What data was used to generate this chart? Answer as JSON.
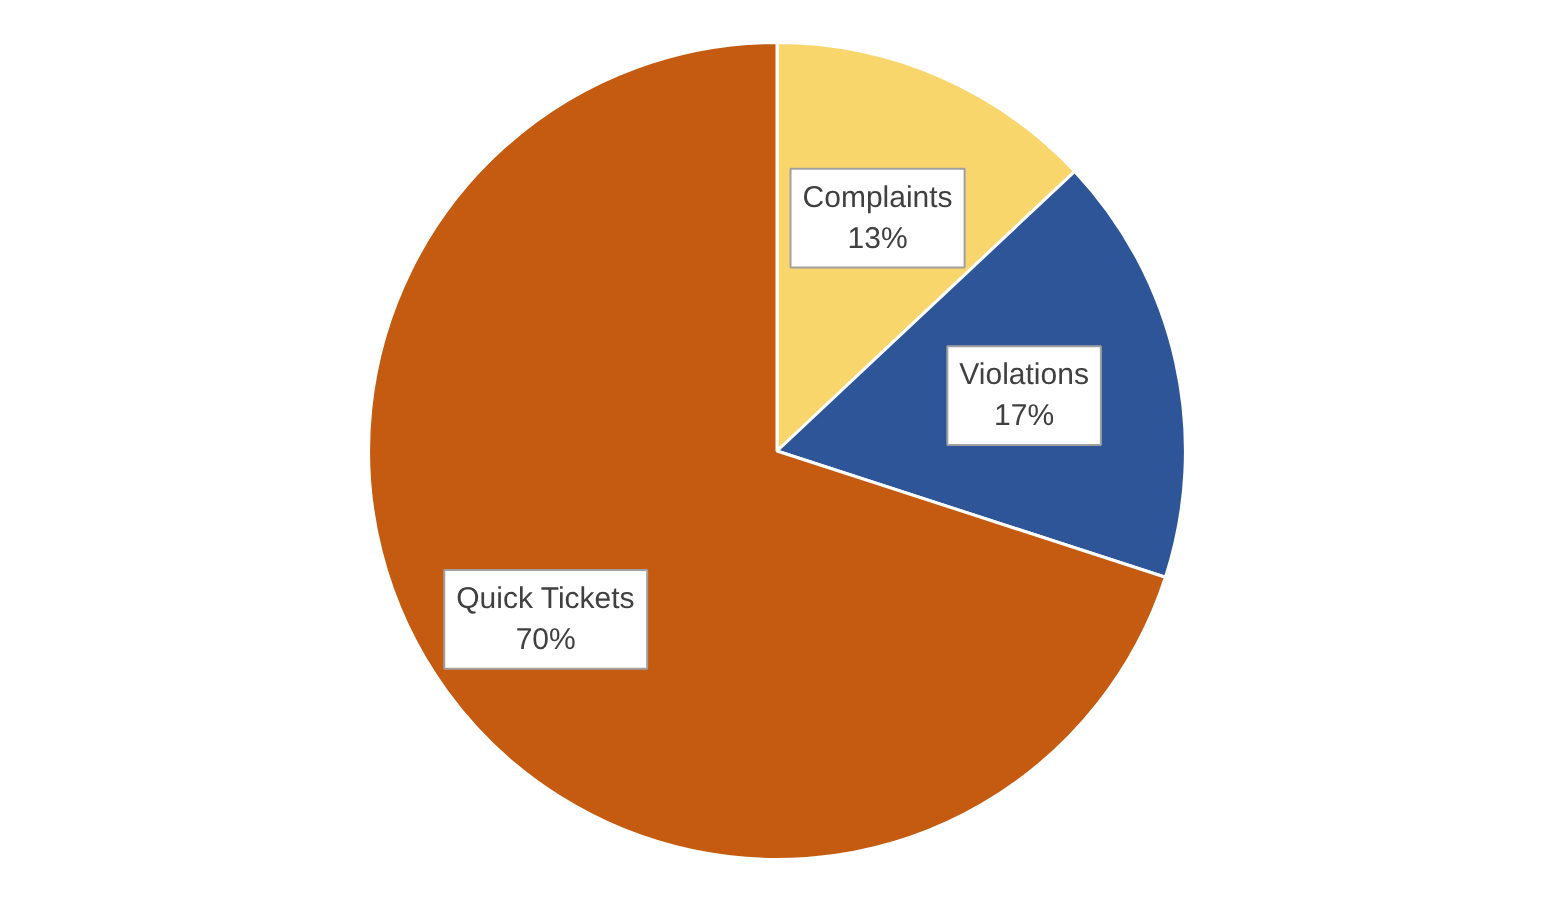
{
  "chart_data": {
    "type": "pie",
    "categories": [
      "Complaints",
      "Violations",
      "Quick Tickets"
    ],
    "values": [
      13,
      17,
      70
    ],
    "value_labels": [
      "13%",
      "17%",
      "70%"
    ],
    "colors": [
      "#f9d66b",
      "#2e5597",
      "#c55a11"
    ]
  }
}
